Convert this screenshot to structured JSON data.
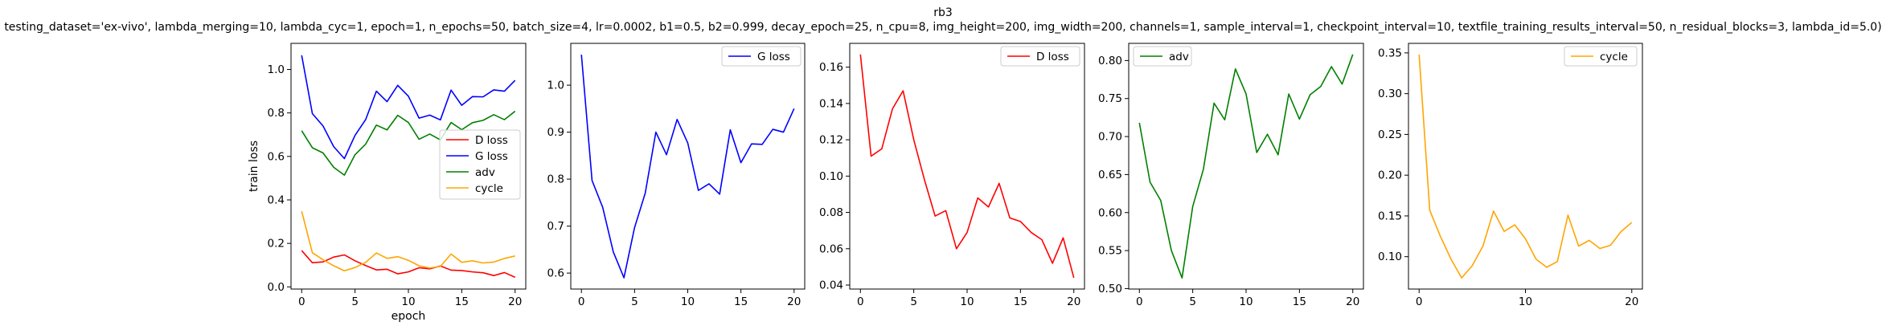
{
  "figure": {
    "title": "rb3",
    "subtitle": "testing_dataset='ex-vivo', lambda_merging=10, lambda_cyc=1, epoch=1, n_epochs=50, batch_size=4, lr=0.0002, b1=0.5, b2=0.999, decay_epoch=25, n_cpu=8, img_height=200, img_width=200, channels=1, sample_interval=1, checkpoint_interval=10, textfile_training_results_interval=50, n_residual_blocks=3, lambda_id=5.0)"
  },
  "colors": {
    "D loss": "#ff0000",
    "G loss": "#0000ff",
    "adv": "#008000",
    "cycle": "#ffa500"
  },
  "chart_data": [
    {
      "type": "line",
      "xlabel": "epoch",
      "ylabel": "train loss",
      "xlim": [
        -1,
        21
      ],
      "ylim": [
        -0.01,
        1.12
      ],
      "xticks": [
        0,
        5,
        10,
        15,
        20
      ],
      "yticks": [
        0.0,
        0.2,
        0.4,
        0.6,
        0.8,
        1.0
      ],
      "ytick_labels": [
        "0.0",
        "0.2",
        "0.4",
        "0.6",
        "0.8",
        "1.0"
      ],
      "legend": "center-right",
      "x": [
        0,
        1,
        2,
        3,
        4,
        5,
        6,
        7,
        8,
        9,
        10,
        11,
        12,
        13,
        14,
        15,
        16,
        17,
        18,
        19,
        20
      ],
      "series": [
        {
          "name": "D loss",
          "values": [
            0.167,
            0.111,
            0.115,
            0.137,
            0.147,
            0.12,
            0.098,
            0.078,
            0.081,
            0.06,
            0.069,
            0.088,
            0.083,
            0.096,
            0.077,
            0.075,
            0.069,
            0.065,
            0.052,
            0.066,
            0.044
          ]
        },
        {
          "name": "G loss",
          "values": [
            1.065,
            0.797,
            0.74,
            0.645,
            0.59,
            0.697,
            0.77,
            0.9,
            0.852,
            0.927,
            0.877,
            0.776,
            0.79,
            0.768,
            0.905,
            0.835,
            0.875,
            0.874,
            0.906,
            0.9,
            0.95
          ]
        },
        {
          "name": "adv",
          "values": [
            0.718,
            0.64,
            0.616,
            0.55,
            0.514,
            0.608,
            0.657,
            0.744,
            0.722,
            0.789,
            0.756,
            0.679,
            0.703,
            0.676,
            0.756,
            0.723,
            0.755,
            0.766,
            0.792,
            0.769,
            0.808
          ]
        },
        {
          "name": "cycle",
          "values": [
            0.348,
            0.157,
            0.125,
            0.097,
            0.074,
            0.089,
            0.113,
            0.156,
            0.131,
            0.139,
            0.122,
            0.097,
            0.087,
            0.094,
            0.151,
            0.113,
            0.12,
            0.11,
            0.114,
            0.131,
            0.142
          ]
        }
      ]
    },
    {
      "type": "line",
      "xlim": [
        -1,
        21
      ],
      "ylim": [
        0.566,
        1.089
      ],
      "xticks": [
        0,
        5,
        10,
        15,
        20
      ],
      "yticks": [
        0.6,
        0.7,
        0.8,
        0.9,
        1.0
      ],
      "ytick_labels": [
        "0.6",
        "0.7",
        "0.8",
        "0.9",
        "1.0"
      ],
      "legend": "top-right",
      "x": [
        0,
        1,
        2,
        3,
        4,
        5,
        6,
        7,
        8,
        9,
        10,
        11,
        12,
        13,
        14,
        15,
        16,
        17,
        18,
        19,
        20
      ],
      "series": [
        {
          "name": "G loss",
          "values": [
            1.065,
            0.797,
            0.74,
            0.645,
            0.59,
            0.697,
            0.77,
            0.9,
            0.852,
            0.927,
            0.877,
            0.776,
            0.79,
            0.768,
            0.905,
            0.835,
            0.875,
            0.874,
            0.906,
            0.9,
            0.95
          ]
        }
      ]
    },
    {
      "type": "line",
      "xlim": [
        -1,
        21
      ],
      "ylim": [
        0.0378,
        0.1731
      ],
      "xticks": [
        0,
        5,
        10,
        15,
        20
      ],
      "yticks": [
        0.04,
        0.06,
        0.08,
        0.1,
        0.12,
        0.14,
        0.16
      ],
      "ytick_labels": [
        "0.04",
        "0.06",
        "0.08",
        "0.10",
        "0.12",
        "0.14",
        "0.16"
      ],
      "legend": "top-right",
      "x": [
        0,
        1,
        2,
        3,
        4,
        5,
        6,
        7,
        8,
        9,
        10,
        11,
        12,
        13,
        14,
        15,
        16,
        17,
        18,
        19,
        20
      ],
      "series": [
        {
          "name": "D loss",
          "values": [
            0.167,
            0.111,
            0.115,
            0.137,
            0.147,
            0.12,
            0.098,
            0.078,
            0.081,
            0.06,
            0.069,
            0.088,
            0.083,
            0.096,
            0.077,
            0.075,
            0.069,
            0.065,
            0.052,
            0.066,
            0.044
          ]
        }
      ]
    },
    {
      "type": "line",
      "xlim": [
        -1,
        21
      ],
      "ylim": [
        0.4994,
        0.8226
      ],
      "xticks": [
        0,
        5,
        10,
        15,
        20
      ],
      "yticks": [
        0.5,
        0.55,
        0.6,
        0.65,
        0.7,
        0.75,
        0.8
      ],
      "ytick_labels": [
        "0.50",
        "0.55",
        "0.60",
        "0.65",
        "0.70",
        "0.75",
        "0.80"
      ],
      "legend": "top-left",
      "x": [
        0,
        1,
        2,
        3,
        4,
        5,
        6,
        7,
        8,
        9,
        10,
        11,
        12,
        13,
        14,
        15,
        16,
        17,
        18,
        19,
        20
      ],
      "series": [
        {
          "name": "adv",
          "values": [
            0.718,
            0.64,
            0.616,
            0.55,
            0.514,
            0.608,
            0.657,
            0.744,
            0.722,
            0.789,
            0.756,
            0.679,
            0.703,
            0.676,
            0.756,
            0.723,
            0.755,
            0.766,
            0.792,
            0.769,
            0.808
          ]
        }
      ]
    },
    {
      "type": "line",
      "xlim": [
        -1,
        21
      ],
      "ylim": [
        0.0603,
        0.3617
      ],
      "xticks": [
        0,
        10,
        20
      ],
      "yticks": [
        0.1,
        0.15,
        0.2,
        0.25,
        0.3,
        0.35
      ],
      "ytick_labels": [
        "0.10",
        "0.15",
        "0.20",
        "0.25",
        "0.30",
        "0.35"
      ],
      "legend": "top-right",
      "x": [
        0,
        1,
        2,
        3,
        4,
        5,
        6,
        7,
        8,
        9,
        10,
        11,
        12,
        13,
        14,
        15,
        16,
        17,
        18,
        19,
        20
      ],
      "series": [
        {
          "name": "cycle",
          "values": [
            0.348,
            0.157,
            0.125,
            0.097,
            0.074,
            0.089,
            0.113,
            0.156,
            0.131,
            0.139,
            0.122,
            0.097,
            0.087,
            0.094,
            0.151,
            0.113,
            0.12,
            0.11,
            0.114,
            0.131,
            0.142
          ]
        }
      ]
    }
  ]
}
